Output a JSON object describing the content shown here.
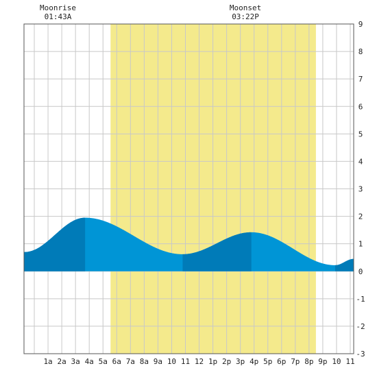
{
  "chart_data": {
    "type": "area",
    "title": "",
    "xlabel": "",
    "ylabel": "",
    "x_tick_labels": [
      "1a",
      "2a",
      "3a",
      "4a",
      "5a",
      "6a",
      "7a",
      "8a",
      "9a",
      "10",
      "11",
      "12",
      "1p",
      "2p",
      "3p",
      "4p",
      "5p",
      "6p",
      "7p",
      "8p",
      "9p",
      "10",
      "11"
    ],
    "y_tick_labels": [
      "-3",
      "-2",
      "-1",
      "0",
      "1",
      "2",
      "3",
      "4",
      "5",
      "6",
      "7",
      "8",
      "9"
    ],
    "xlim_hours": [
      -0.75,
      23.25
    ],
    "ylim": [
      -3,
      9
    ],
    "grid": true,
    "daylight_hours": [
      5.55,
      20.5
    ],
    "tide_extremes": [
      {
        "hour": -0.7,
        "height": 0.7
      },
      {
        "hour": 3.7,
        "height": 1.95
      },
      {
        "hour": 10.8,
        "height": 0.62
      },
      {
        "hour": 15.8,
        "height": 1.42
      },
      {
        "hour": 21.9,
        "height": 0.22
      },
      {
        "hour": 23.25,
        "height": 0.45
      }
    ],
    "dark_segments_hours": [
      [
        -0.75,
        3.7
      ],
      [
        10.8,
        15.8
      ],
      [
        21.9,
        23.25
      ]
    ],
    "moonrise": {
      "label": "Moonrise",
      "time": "01:43A",
      "hour": 1.72
    },
    "moonset": {
      "label": "Moonset",
      "time": "03:22P",
      "hour": 15.37
    },
    "colors": {
      "daylight": "#f4ea8c",
      "tide_light": "#0095d6",
      "tide_dark": "#007bb8",
      "grid": "#c8c8c8",
      "border": "#555555"
    }
  }
}
